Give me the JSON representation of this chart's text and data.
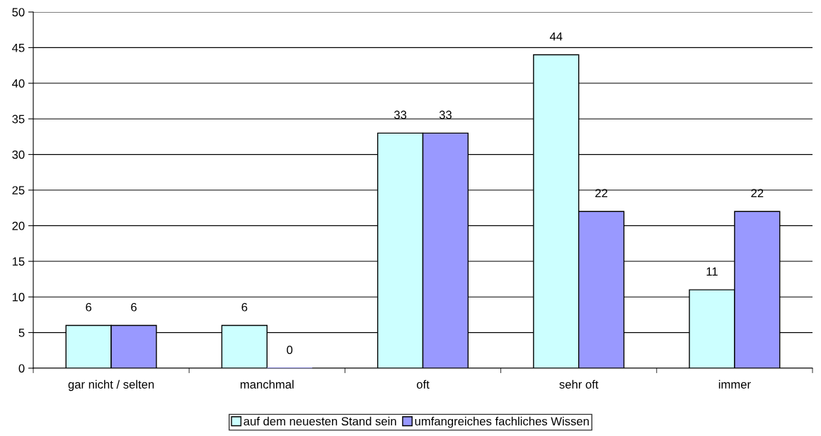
{
  "chart_data": {
    "type": "bar",
    "categories": [
      "gar nicht / selten",
      "manchmal",
      "oft",
      "sehr oft",
      "immer"
    ],
    "series": [
      {
        "name": "auf dem neuesten Stand sein",
        "color": "#ccffff",
        "values": [
          6,
          6,
          33,
          44,
          11
        ]
      },
      {
        "name": "umfangreiches fachliches Wissen",
        "color": "#9999ff",
        "values": [
          6,
          0,
          33,
          22,
          22
        ]
      }
    ],
    "ylim": [
      0,
      50
    ],
    "yticks": [
      0,
      5,
      10,
      15,
      20,
      25,
      30,
      35,
      40,
      45,
      50
    ],
    "grid": "y",
    "data_labels": true,
    "legend": "bottom"
  }
}
